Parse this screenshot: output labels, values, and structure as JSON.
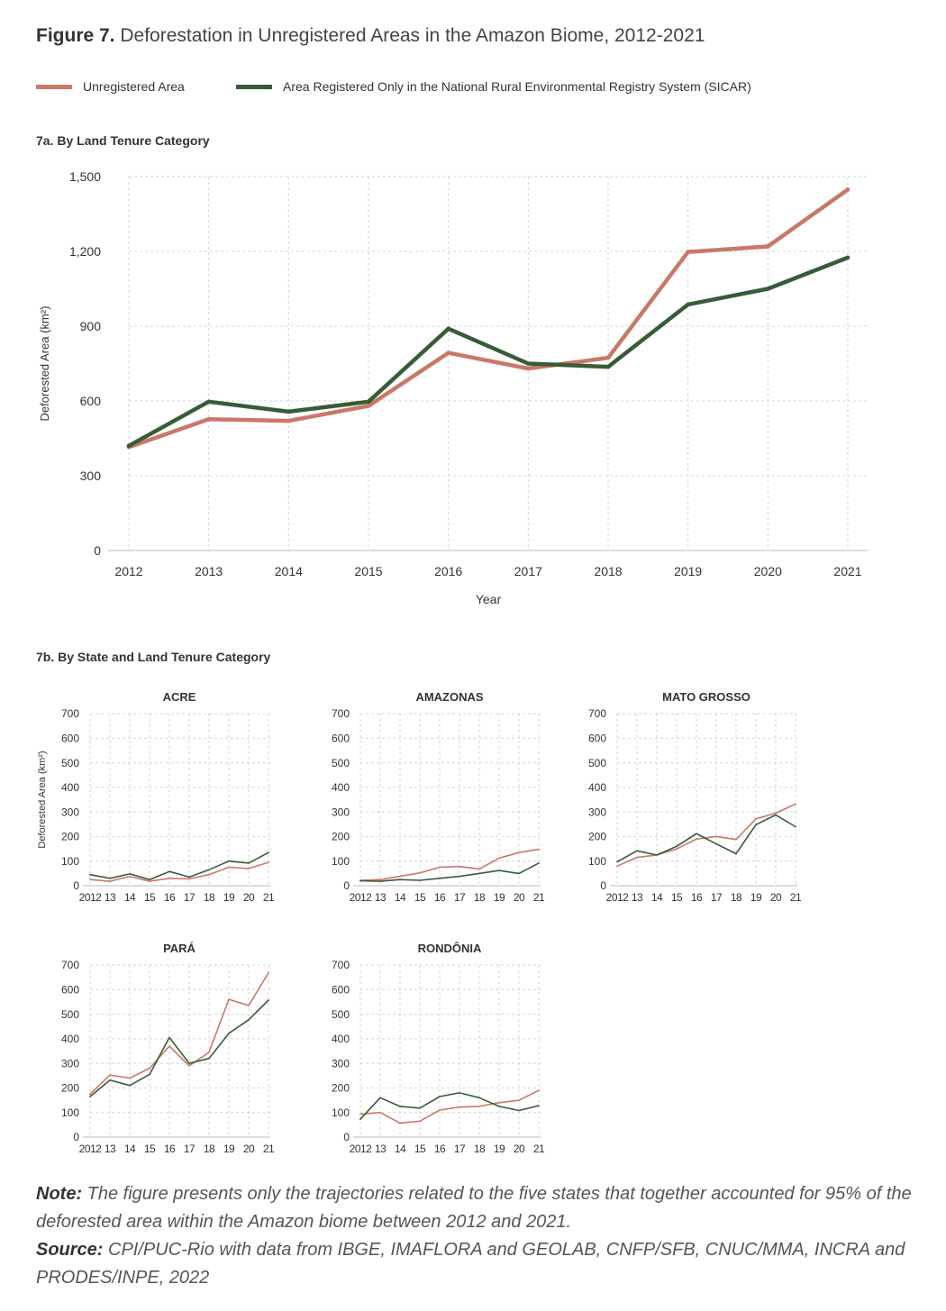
{
  "figure": {
    "label": "Figure 7.",
    "title": "Deforestation in Unregistered Areas in the Amazon Biome, 2012-2021"
  },
  "legend": {
    "unregistered": "Unregistered Area",
    "sicar": "Area Registered Only in the National Rural Environmental Registry System (SICAR)"
  },
  "colors": {
    "unregistered": "#c97868",
    "sicar": "#375c37",
    "grid": "#cccccc",
    "axis": "#cccccc"
  },
  "panel_a": {
    "subtitle": "7a. By Land Tenure Category"
  },
  "panel_b": {
    "subtitle": "7b. By State and Land Tenure Category"
  },
  "notes": {
    "note_label": "Note:",
    "note_text": " The figure presents only the trajectories related to the five states that together accounted for 95% of the deforested area within the Amazon biome between 2012 and 2021.",
    "source_label": "Source:",
    "source_text": " CPI/PUC-Rio with data from IBGE, IMAFLORA and GEOLAB, CNFP/SFB, CNUC/MMA, INCRA and PRODES/INPE, 2022"
  },
  "chart_data": [
    {
      "type": "line",
      "title": "7a. By Land Tenure Category",
      "xlabel": "Year",
      "ylabel": "Deforested Area (km²)",
      "categories": [
        "2012",
        "2013",
        "2014",
        "2015",
        "2016",
        "2017",
        "2018",
        "2019",
        "2020",
        "2021"
      ],
      "ylim": [
        0,
        1500
      ],
      "yticks": [
        "0",
        "300",
        "600",
        "900",
        "1,200",
        "1,500"
      ],
      "grid": true,
      "series": [
        {
          "name": "Unregistered Area",
          "values": [
            415,
            527,
            520,
            580,
            793,
            730,
            773,
            1198,
            1220,
            1448
          ]
        },
        {
          "name": "Area Registered Only in the National Rural Environmental Registry System (SICAR)",
          "values": [
            420,
            597,
            557,
            597,
            890,
            750,
            737,
            987,
            1050,
            1175
          ]
        }
      ]
    },
    {
      "type": "line",
      "title": "ACRE",
      "ylabel": "Deforested Area (km²)",
      "categories": [
        "2012",
        "13",
        "14",
        "15",
        "16",
        "17",
        "18",
        "19",
        "20",
        "21"
      ],
      "ylim": [
        0,
        700
      ],
      "yticks": [
        "0",
        "100",
        "200",
        "300",
        "400",
        "500",
        "600",
        "700"
      ],
      "series": [
        {
          "name": "Unregistered Area",
          "values": [
            25,
            18,
            38,
            18,
            30,
            28,
            45,
            75,
            70,
            95
          ]
        },
        {
          "name": "Area Registered Only in the National Rural Environmental Registry System (SICAR)",
          "values": [
            45,
            30,
            48,
            25,
            58,
            35,
            65,
            100,
            92,
            135
          ]
        }
      ]
    },
    {
      "type": "line",
      "title": "AMAZONAS",
      "categories": [
        "2012",
        "13",
        "14",
        "15",
        "16",
        "17",
        "18",
        "19",
        "20",
        "21"
      ],
      "ylim": [
        0,
        700
      ],
      "yticks": [
        "0",
        "100",
        "200",
        "300",
        "400",
        "500",
        "600",
        "700"
      ],
      "series": [
        {
          "name": "Unregistered Area",
          "values": [
            22,
            25,
            38,
            52,
            75,
            78,
            68,
            112,
            135,
            148
          ]
        },
        {
          "name": "Area Registered Only in the National Rural Environmental Registry System (SICAR)",
          "values": [
            20,
            18,
            25,
            22,
            30,
            38,
            50,
            62,
            50,
            92
          ]
        }
      ]
    },
    {
      "type": "line",
      "title": "MATO GROSSO",
      "categories": [
        "2012",
        "13",
        "14",
        "15",
        "16",
        "17",
        "18",
        "19",
        "20",
        "21"
      ],
      "ylim": [
        0,
        700
      ],
      "yticks": [
        "0",
        "100",
        "200",
        "300",
        "400",
        "500",
        "600",
        "700"
      ],
      "series": [
        {
          "name": "Unregistered Area",
          "values": [
            80,
            115,
            125,
            150,
            190,
            200,
            188,
            272,
            295,
            332
          ]
        },
        {
          "name": "Area Registered Only in the National Rural Environmental Registry System (SICAR)",
          "values": [
            97,
            142,
            125,
            160,
            212,
            170,
            130,
            248,
            288,
            240
          ]
        }
      ]
    },
    {
      "type": "line",
      "title": "PARÁ",
      "categories": [
        "2012",
        "13",
        "14",
        "15",
        "16",
        "17",
        "18",
        "19",
        "20",
        "21"
      ],
      "ylim": [
        0,
        700
      ],
      "yticks": [
        "0",
        "100",
        "200",
        "300",
        "400",
        "500",
        "600",
        "700"
      ],
      "series": [
        {
          "name": "Unregistered Area",
          "values": [
            175,
            252,
            240,
            280,
            370,
            290,
            345,
            560,
            535,
            668
          ]
        },
        {
          "name": "Area Registered Only in the National Rural Environmental Registry System (SICAR)",
          "values": [
            165,
            232,
            210,
            255,
            405,
            300,
            320,
            422,
            477,
            557
          ]
        }
      ]
    },
    {
      "type": "line",
      "title": "RONDÔNIA",
      "categories": [
        "2012",
        "13",
        "14",
        "15",
        "16",
        "17",
        "18",
        "19",
        "20",
        "21"
      ],
      "ylim": [
        0,
        700
      ],
      "yticks": [
        "0",
        "100",
        "200",
        "300",
        "400",
        "500",
        "600",
        "700"
      ],
      "series": [
        {
          "name": "Unregistered Area",
          "values": [
            93,
            100,
            57,
            65,
            110,
            122,
            125,
            140,
            150,
            190
          ]
        },
        {
          "name": "Area Registered Only in the National Rural Environmental Registry System (SICAR)",
          "values": [
            73,
            160,
            125,
            118,
            165,
            180,
            160,
            125,
            108,
            128
          ]
        }
      ]
    }
  ]
}
